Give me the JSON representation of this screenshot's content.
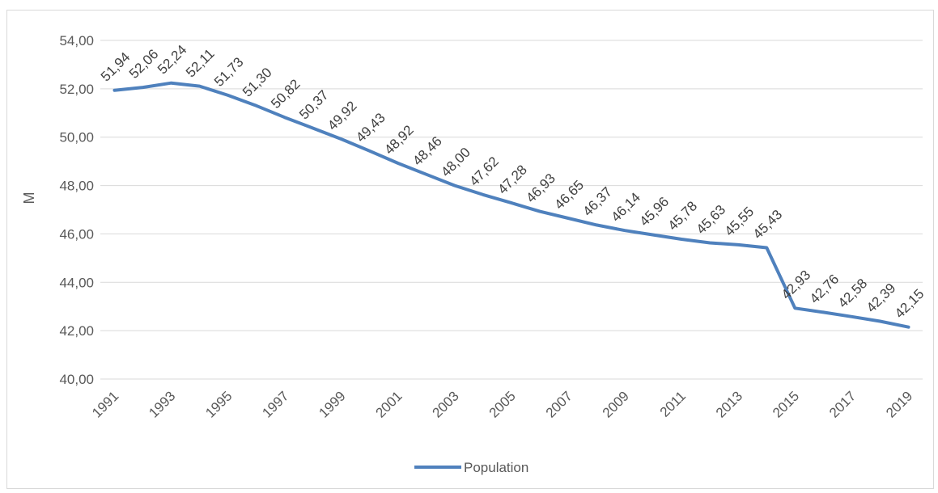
{
  "chart_data": {
    "type": "line",
    "x": [
      "1991",
      "1992",
      "1993",
      "1994",
      "1995",
      "1996",
      "1997",
      "1998",
      "1999",
      "2000",
      "2001",
      "2002",
      "2003",
      "2004",
      "2005",
      "2006",
      "2007",
      "2008",
      "2009",
      "2010",
      "2011",
      "2012",
      "2013",
      "2014",
      "2015",
      "2016",
      "2017",
      "2018",
      "2019"
    ],
    "x_tick_labels": [
      "1991",
      "1993",
      "1995",
      "1997",
      "1999",
      "2001",
      "2003",
      "2005",
      "2007",
      "2009",
      "2011",
      "2013",
      "2015",
      "2017",
      "2019"
    ],
    "series": [
      {
        "name": "Population",
        "values": [
          51.94,
          52.06,
          52.24,
          52.11,
          51.73,
          51.3,
          50.82,
          50.37,
          49.92,
          49.43,
          48.92,
          48.46,
          48.0,
          47.62,
          47.28,
          46.93,
          46.65,
          46.37,
          46.14,
          45.96,
          45.78,
          45.63,
          45.55,
          45.43,
          42.93,
          42.76,
          42.58,
          42.39,
          42.15
        ],
        "labels": [
          "51,94",
          "52,06",
          "52,24",
          "52,11",
          "51,73",
          "51,30",
          "50,82",
          "50,37",
          "49,92",
          "49,43",
          "48,92",
          "48,46",
          "48,00",
          "47,62",
          "47,28",
          "46,93",
          "46,65",
          "46,37",
          "46,14",
          "45,96",
          "45,78",
          "45,63",
          "45,55",
          "45,43",
          "42,93",
          "42,76",
          "42,58",
          "42,39",
          "42,15"
        ],
        "color": "#4f81bd"
      }
    ],
    "ylim": [
      40,
      54
    ],
    "y_ticks": [
      40,
      42,
      44,
      46,
      48,
      50,
      52,
      54
    ],
    "y_tick_labels": [
      "40,00",
      "42,00",
      "44,00",
      "46,00",
      "48,00",
      "50,00",
      "52,00",
      "54,00"
    ],
    "ylabel": "M",
    "xlabel": "",
    "title": "",
    "grid": true,
    "legend_position": "bottom"
  }
}
